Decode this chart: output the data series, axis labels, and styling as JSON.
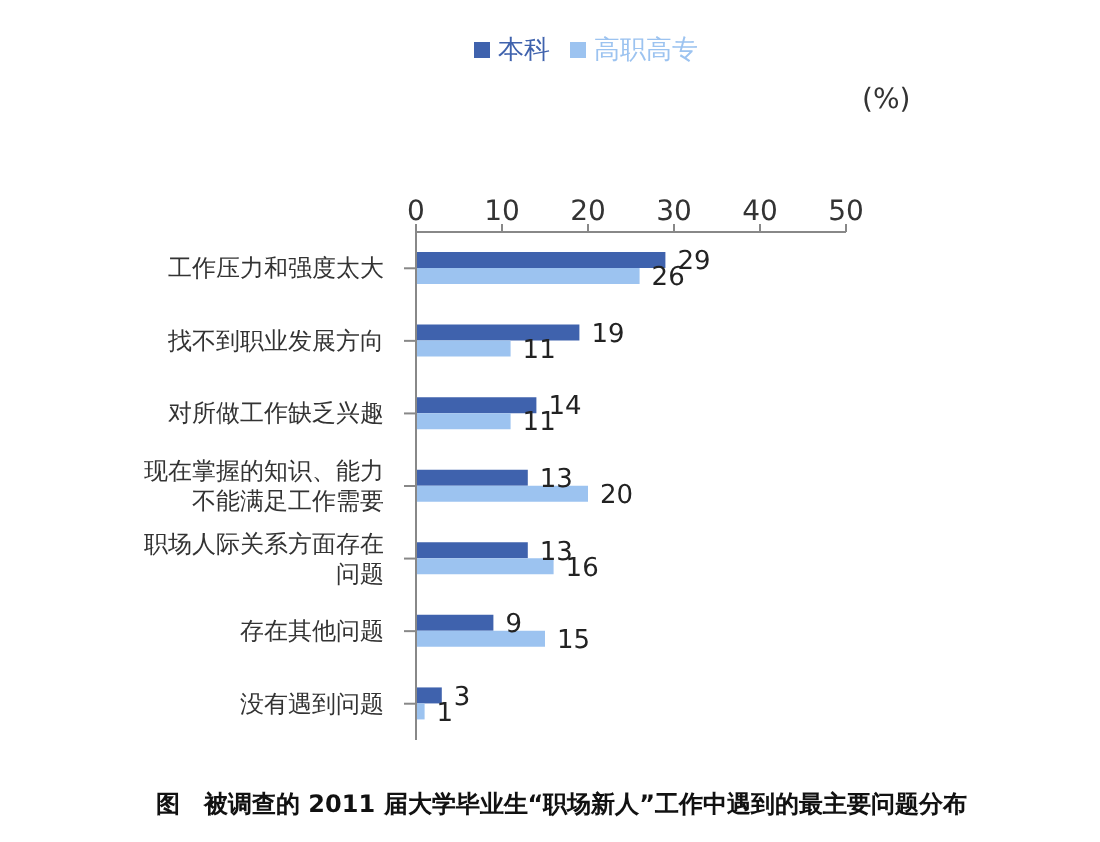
{
  "chart_data": {
    "type": "bar",
    "orientation": "horizontal",
    "title": "图　被调查的 2011 届大学毕业生“职场新人”工作中遇到的最主要问题分布",
    "xlabel": "(%)",
    "categories": [
      "工作压力和强度太大",
      "找不到职业发展方向",
      "对所做工作缺乏兴趣",
      "现在掌握的知识、能力不能满足工作需要",
      "职场人际关系方面存在问题",
      "存在其他问题",
      "没有遇到问题"
    ],
    "series": [
      {
        "name": "本科",
        "color": "#3f62ad",
        "values": [
          29,
          19,
          14,
          13,
          13,
          9,
          3
        ]
      },
      {
        "name": "高职高专",
        "color": "#9cc3f0",
        "values": [
          26,
          11,
          11,
          20,
          16,
          15,
          1
        ]
      }
    ],
    "xlim": [
      0,
      50
    ],
    "xticks": [
      0,
      10,
      20,
      30,
      40,
      50
    ],
    "data_labels": true,
    "legend": "top",
    "grid": false
  }
}
